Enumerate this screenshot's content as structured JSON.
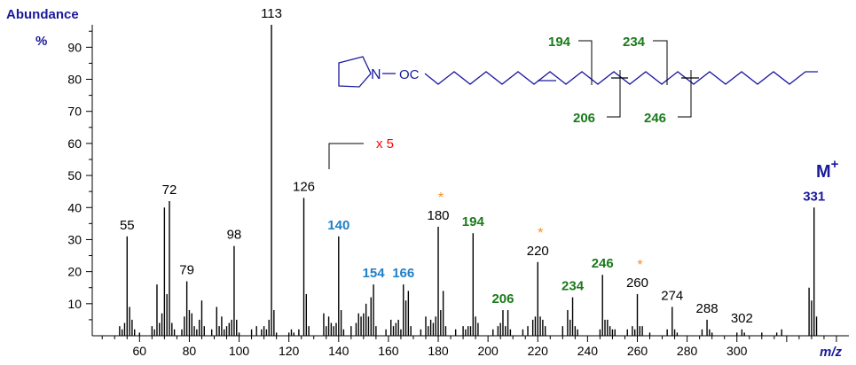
{
  "colors": {
    "axis_title": "#1a1a9c",
    "black": "#000000",
    "green": "#1a7a1a",
    "blue": "#1f7fc8",
    "orange": "#ff8c1a",
    "red": "#ff0000",
    "structure": "#1a1a9c"
  },
  "chart_data": {
    "type": "bar",
    "ylabel": "Abundance",
    "yunit": "%",
    "xlabel": "m/z",
    "xlim": [
      41,
      345
    ],
    "ylim": [
      0,
      97
    ],
    "x_ticks": [
      60,
      80,
      100,
      120,
      140,
      160,
      180,
      200,
      220,
      240,
      260,
      280,
      300
    ],
    "y_ticks": [
      10,
      20,
      30,
      40,
      50,
      60,
      70,
      80,
      90
    ],
    "scale_note": "x 5",
    "scale_from_mz": 131,
    "molecular_ion": "M",
    "molecular_ion_sup": "+",
    "peaks": [
      [
        52,
        3
      ],
      [
        53,
        2
      ],
      [
        54,
        4
      ],
      [
        55,
        31
      ],
      [
        56,
        9
      ],
      [
        57,
        5
      ],
      [
        58,
        2
      ],
      [
        60,
        1
      ],
      [
        65,
        3
      ],
      [
        66,
        2
      ],
      [
        67,
        16
      ],
      [
        68,
        4
      ],
      [
        69,
        7
      ],
      [
        70,
        40
      ],
      [
        71,
        13
      ],
      [
        72,
        42
      ],
      [
        73,
        4
      ],
      [
        74,
        2
      ],
      [
        77,
        2
      ],
      [
        78,
        6
      ],
      [
        79,
        17
      ],
      [
        80,
        8
      ],
      [
        81,
        7
      ],
      [
        82,
        3
      ],
      [
        83,
        2
      ],
      [
        84,
        5
      ],
      [
        85,
        11
      ],
      [
        86,
        3
      ],
      [
        89,
        2
      ],
      [
        91,
        9
      ],
      [
        92,
        3
      ],
      [
        93,
        6
      ],
      [
        94,
        2
      ],
      [
        95,
        3
      ],
      [
        96,
        4
      ],
      [
        97,
        5
      ],
      [
        98,
        28
      ],
      [
        99,
        5
      ],
      [
        100,
        1
      ],
      [
        105,
        2
      ],
      [
        107,
        3
      ],
      [
        109,
        2
      ],
      [
        110,
        3
      ],
      [
        111,
        2
      ],
      [
        112,
        5
      ],
      [
        113,
        97
      ],
      [
        114,
        8
      ],
      [
        115,
        1
      ],
      [
        120,
        1
      ],
      [
        121,
        2
      ],
      [
        122,
        1
      ],
      [
        124,
        2
      ],
      [
        126,
        43
      ],
      [
        127,
        13
      ],
      [
        128,
        3
      ],
      [
        134,
        7
      ],
      [
        135,
        3
      ],
      [
        136,
        6
      ],
      [
        137,
        4
      ],
      [
        138,
        3
      ],
      [
        139,
        4
      ],
      [
        140,
        31
      ],
      [
        141,
        8
      ],
      [
        142,
        2
      ],
      [
        145,
        3
      ],
      [
        147,
        4
      ],
      [
        148,
        7
      ],
      [
        149,
        6
      ],
      [
        150,
        7
      ],
      [
        151,
        10
      ],
      [
        152,
        6
      ],
      [
        153,
        12
      ],
      [
        154,
        16
      ],
      [
        155,
        3
      ],
      [
        159,
        2
      ],
      [
        161,
        5
      ],
      [
        162,
        3
      ],
      [
        163,
        4
      ],
      [
        164,
        5
      ],
      [
        165,
        2
      ],
      [
        166,
        16
      ],
      [
        167,
        11
      ],
      [
        168,
        14
      ],
      [
        169,
        3
      ],
      [
        173,
        2
      ],
      [
        175,
        6
      ],
      [
        176,
        3
      ],
      [
        177,
        5
      ],
      [
        178,
        4
      ],
      [
        179,
        6
      ],
      [
        180,
        34
      ],
      [
        181,
        8
      ],
      [
        182,
        14
      ],
      [
        183,
        3
      ],
      [
        187,
        2
      ],
      [
        190,
        3
      ],
      [
        191,
        2
      ],
      [
        192,
        3
      ],
      [
        193,
        3
      ],
      [
        194,
        32
      ],
      [
        195,
        6
      ],
      [
        196,
        4
      ],
      [
        202,
        2
      ],
      [
        204,
        3
      ],
      [
        205,
        4
      ],
      [
        206,
        8
      ],
      [
        207,
        3
      ],
      [
        208,
        8
      ],
      [
        209,
        2
      ],
      [
        214,
        2
      ],
      [
        216,
        3
      ],
      [
        218,
        5
      ],
      [
        219,
        6
      ],
      [
        220,
        23
      ],
      [
        221,
        6
      ],
      [
        222,
        5
      ],
      [
        223,
        3
      ],
      [
        230,
        3
      ],
      [
        232,
        8
      ],
      [
        233,
        5
      ],
      [
        234,
        12
      ],
      [
        235,
        3
      ],
      [
        236,
        2
      ],
      [
        245,
        2
      ],
      [
        246,
        19
      ],
      [
        247,
        5
      ],
      [
        248,
        5
      ],
      [
        249,
        3
      ],
      [
        250,
        2
      ],
      [
        251,
        2
      ],
      [
        256,
        2
      ],
      [
        258,
        3
      ],
      [
        259,
        2
      ],
      [
        260,
        13
      ],
      [
        261,
        3
      ],
      [
        262,
        3
      ],
      [
        265,
        1
      ],
      [
        272,
        2
      ],
      [
        274,
        9
      ],
      [
        275,
        2
      ],
      [
        276,
        1
      ],
      [
        286,
        2
      ],
      [
        288,
        5
      ],
      [
        289,
        2
      ],
      [
        290,
        1
      ],
      [
        300,
        1
      ],
      [
        302,
        2
      ],
      [
        303,
        1
      ],
      [
        310,
        1
      ],
      [
        316,
        1
      ],
      [
        318,
        2
      ],
      [
        329,
        15
      ],
      [
        330,
        11
      ],
      [
        331,
        40
      ],
      [
        332,
        6
      ]
    ],
    "labels": [
      {
        "mz": 55,
        "y": 31,
        "text": "55",
        "color": "black"
      },
      {
        "mz": 72,
        "y": 42,
        "text": "72",
        "color": "black"
      },
      {
        "mz": 79,
        "y": 17,
        "text": "79",
        "color": "black"
      },
      {
        "mz": 98,
        "y": 28,
        "text": "98",
        "color": "black"
      },
      {
        "mz": 113,
        "y": 97,
        "text": "113",
        "color": "black"
      },
      {
        "mz": 126,
        "y": 43,
        "text": "126",
        "color": "black"
      },
      {
        "mz": 140,
        "y": 31,
        "text": "140",
        "color": "blue"
      },
      {
        "mz": 154,
        "y": 16,
        "text": "154",
        "color": "blue"
      },
      {
        "mz": 166,
        "y": 16,
        "text": "166",
        "color": "blue"
      },
      {
        "mz": 180,
        "y": 34,
        "text": "180",
        "color": "black"
      },
      {
        "mz": 194,
        "y": 32,
        "text": "194",
        "color": "green"
      },
      {
        "mz": 206,
        "y": 8,
        "text": "206",
        "color": "green"
      },
      {
        "mz": 220,
        "y": 23,
        "text": "220",
        "color": "black"
      },
      {
        "mz": 234,
        "y": 12,
        "text": "234",
        "color": "green"
      },
      {
        "mz": 246,
        "y": 19,
        "text": "246",
        "color": "green"
      },
      {
        "mz": 260,
        "y": 13,
        "text": "260",
        "color": "black"
      },
      {
        "mz": 274,
        "y": 9,
        "text": "274",
        "color": "black"
      },
      {
        "mz": 288,
        "y": 5,
        "text": "288",
        "color": "black"
      },
      {
        "mz": 302,
        "y": 2,
        "text": "302",
        "color": "black"
      },
      {
        "mz": 331,
        "y": 40,
        "text": "331",
        "color": "axis_title"
      }
    ],
    "asterisks": [
      {
        "mz": 180,
        "text": "*"
      },
      {
        "mz": 220,
        "text": "*"
      },
      {
        "mz": 260,
        "text": "*"
      }
    ]
  },
  "structure": {
    "nitrogen": "N",
    "linker": "OC",
    "fragments": [
      {
        "text": "194",
        "color": "green"
      },
      {
        "text": "234",
        "color": "green"
      },
      {
        "text": "206",
        "color": "green"
      },
      {
        "text": "246",
        "color": "green"
      }
    ]
  }
}
